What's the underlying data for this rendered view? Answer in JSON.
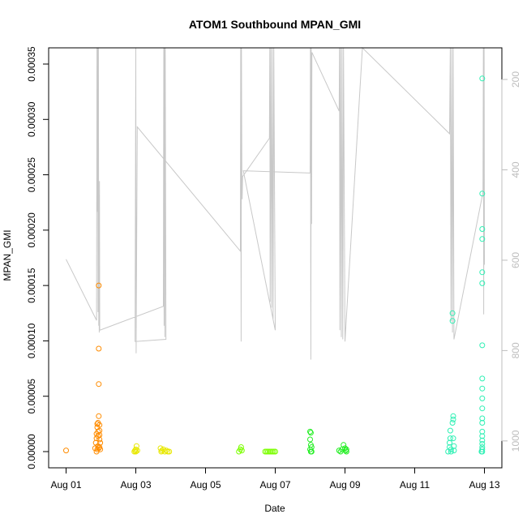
{
  "chart_data": {
    "type": "scatter",
    "title": "ATOM1 Southbound MPAN_GMI",
    "xlabel": "Date",
    "ylabel": "MPAN_GMI",
    "xlim": [
      "2004-07-31T12:00",
      "2004-08-13T12:00"
    ],
    "ylim": [
      0,
      0.00035
    ],
    "x_tick_labels": [
      "Aug 01",
      "Aug 03",
      "Aug 05",
      "Aug 07",
      "Aug 09",
      "Aug 11",
      "Aug 13"
    ],
    "x_ticks": [
      "2004-08-01",
      "2004-08-03",
      "2004-08-05",
      "2004-08-07",
      "2004-08-09",
      "2004-08-11",
      "2004-08-13"
    ],
    "y_ticks": [
      0,
      5e-05,
      0.0001,
      0.00015,
      0.0002,
      0.00025,
      0.0003,
      0.00035
    ],
    "y_tick_labels": [
      "0.00000",
      "0.00005",
      "0.00010",
      "0.00015",
      "0.00020",
      "0.00025",
      "0.00030",
      "0.00035"
    ],
    "right_axis": {
      "ticks": [
        200,
        400,
        600,
        800,
        1000
      ],
      "tick_labels": [
        "200",
        "400",
        "600",
        "800",
        "1000"
      ],
      "range": [
        130,
        1020
      ],
      "inverted": true,
      "color": "#bdbdbd"
    },
    "series": [
      {
        "color": "#ff8c00",
        "points": [
          [
            "2004-08-01T00:00",
            1e-06
          ],
          [
            "2004-08-01T20:00",
            3e-06
          ],
          [
            "2004-08-01T20:30",
            8e-06
          ],
          [
            "2004-08-01T21:00",
            1.2e-05
          ],
          [
            "2004-08-01T21:00",
            1.6e-05
          ],
          [
            "2004-08-01T21:30",
            2.2e-05
          ],
          [
            "2004-08-01T21:30",
            2.5e-05
          ],
          [
            "2004-08-01T22:00",
            2.6e-05
          ],
          [
            "2004-08-01T22:00",
            1.8e-05
          ],
          [
            "2004-08-01T22:00",
            1.4e-05
          ],
          [
            "2004-08-01T22:30",
            0.00015
          ],
          [
            "2004-08-01T22:30",
            9.3e-05
          ],
          [
            "2004-08-01T22:30",
            6.1e-05
          ],
          [
            "2004-08-01T22:30",
            3.2e-05
          ],
          [
            "2004-08-01T23:00",
            2.4e-05
          ],
          [
            "2004-08-01T23:00",
            1.9e-05
          ],
          [
            "2004-08-01T23:00",
            1.5e-05
          ],
          [
            "2004-08-01T23:00",
            1.1e-05
          ],
          [
            "2004-08-01T23:30",
            8e-06
          ],
          [
            "2004-08-01T22:00",
            5e-06
          ],
          [
            "2004-08-01T22:30",
            3e-06
          ],
          [
            "2004-08-01T21:30",
            2e-06
          ],
          [
            "2004-08-01T23:00",
            4e-06
          ],
          [
            "2004-08-01T23:30",
            2e-06
          ],
          [
            "2004-08-01T21:00",
            0.0
          ]
        ]
      },
      {
        "color": "#e8e800",
        "points": [
          [
            "2004-08-02T23:00",
            0.0
          ],
          [
            "2004-08-02T23:30",
            1e-06
          ],
          [
            "2004-08-03T00:00",
            2e-06
          ],
          [
            "2004-08-03T00:00",
            0.0
          ],
          [
            "2004-08-03T00:30",
            5e-06
          ],
          [
            "2004-08-03T01:00",
            1e-06
          ],
          [
            "2004-08-03T17:00",
            3e-06
          ],
          [
            "2004-08-03T17:30",
            0.0
          ],
          [
            "2004-08-03T18:00",
            1e-06
          ],
          [
            "2004-08-03T19:00",
            2e-06
          ],
          [
            "2004-08-03T20:00",
            0.0
          ],
          [
            "2004-08-03T21:00",
            1e-06
          ],
          [
            "2004-08-03T22:00",
            0.0
          ],
          [
            "2004-08-03T23:00",
            0.0
          ]
        ]
      },
      {
        "color": "#7cff00",
        "points": [
          [
            "2004-08-05T23:00",
            0.0
          ],
          [
            "2004-08-06T00:00",
            2e-06
          ],
          [
            "2004-08-06T00:30",
            4e-06
          ],
          [
            "2004-08-06T01:00",
            1e-06
          ],
          [
            "2004-08-06T17:00",
            0.0
          ],
          [
            "2004-08-06T18:00",
            0.0
          ],
          [
            "2004-08-06T19:00",
            0.0
          ],
          [
            "2004-08-06T20:00",
            0.0
          ],
          [
            "2004-08-06T21:00",
            0.0
          ],
          [
            "2004-08-06T22:00",
            0.0
          ],
          [
            "2004-08-06T23:00",
            0.0
          ],
          [
            "2004-08-07T00:00",
            0.0
          ]
        ]
      },
      {
        "color": "#22ee22",
        "points": [
          [
            "2004-08-08T00:00",
            1.8e-05
          ],
          [
            "2004-08-08T00:30",
            1.7e-05
          ],
          [
            "2004-08-08T00:00",
            1.1e-05
          ],
          [
            "2004-08-08T00:30",
            6e-06
          ],
          [
            "2004-08-08T01:00",
            4e-06
          ],
          [
            "2004-08-08T00:00",
            2e-06
          ],
          [
            "2004-08-08T01:00",
            0.0
          ],
          [
            "2004-08-08T00:30",
            0.0
          ],
          [
            "2004-08-08T20:00",
            1e-06
          ],
          [
            "2004-08-08T21:00",
            0.0
          ],
          [
            "2004-08-08T22:00",
            2e-06
          ],
          [
            "2004-08-08T23:00",
            6e-06
          ],
          [
            "2004-08-09T00:00",
            3e-06
          ],
          [
            "2004-08-09T00:30",
            1e-06
          ],
          [
            "2004-08-09T01:00",
            0.0
          ],
          [
            "2004-08-09T01:00",
            2e-06
          ]
        ]
      },
      {
        "color": "#2ef0b4",
        "points": [
          [
            "2004-08-11T23:00",
            0.0
          ],
          [
            "2004-08-12T00:00",
            4e-06
          ],
          [
            "2004-08-12T00:00",
            8e-06
          ],
          [
            "2004-08-12T00:30",
            1.2e-05
          ],
          [
            "2004-08-12T00:30",
            1.9e-05
          ],
          [
            "2004-08-12T01:00",
            2e-06
          ],
          [
            "2004-08-12T01:00",
            0.0
          ],
          [
            "2004-08-12T02:00",
            0.000125
          ],
          [
            "2004-08-12T02:00",
            0.000118
          ],
          [
            "2004-08-12T02:00",
            2.6e-05
          ],
          [
            "2004-08-12T02:30",
            3.2e-05
          ],
          [
            "2004-08-12T02:30",
            2.9e-05
          ],
          [
            "2004-08-12T02:30",
            1.2e-05
          ],
          [
            "2004-08-12T03:00",
            5e-06
          ],
          [
            "2004-08-12T03:00",
            1e-06
          ],
          [
            "2004-08-12T22:00",
            0.0
          ],
          [
            "2004-08-12T22:30",
            0.000337
          ],
          [
            "2004-08-12T22:30",
            0.000233
          ],
          [
            "2004-08-12T22:30",
            0.000201
          ],
          [
            "2004-08-12T22:30",
            0.000192
          ],
          [
            "2004-08-12T22:30",
            0.000162
          ],
          [
            "2004-08-12T22:30",
            0.000152
          ],
          [
            "2004-08-12T22:30",
            9.6e-05
          ],
          [
            "2004-08-12T22:30",
            6.6e-05
          ],
          [
            "2004-08-12T22:30",
            5.7e-05
          ],
          [
            "2004-08-12T22:30",
            4.8e-05
          ],
          [
            "2004-08-12T22:30",
            3.9e-05
          ],
          [
            "2004-08-12T22:30",
            3e-05
          ],
          [
            "2004-08-12T22:30",
            2.6e-05
          ],
          [
            "2004-08-12T22:30",
            1.8e-05
          ],
          [
            "2004-08-12T22:30",
            1.4e-05
          ],
          [
            "2004-08-12T22:30",
            1e-05
          ],
          [
            "2004-08-12T22:30",
            7e-06
          ],
          [
            "2004-08-12T22:30",
            4e-06
          ],
          [
            "2004-08-12T22:30",
            2e-06
          ],
          [
            "2004-08-12T22:30",
            0.0
          ]
        ]
      }
    ],
    "background_track": {
      "axis": "right",
      "color": "#c8c8c8",
      "points": [
        [
          "2004-08-01T00:00",
          598
        ],
        [
          "2004-08-01T21:00",
          733
        ],
        [
          "2004-08-01T21:15",
          130
        ],
        [
          "2004-08-01T21:30",
          493
        ],
        [
          "2004-08-01T21:45",
          130
        ],
        [
          "2004-08-01T22:00",
          715
        ],
        [
          "2004-08-01T22:15",
          130
        ],
        [
          "2004-08-01T22:30",
          745
        ],
        [
          "2004-08-01T22:40",
          455
        ],
        [
          "2004-08-01T22:50",
          760
        ],
        [
          "2004-08-01T23:00",
          425
        ],
        [
          "2004-08-01T23:10",
          755
        ],
        [
          "2004-08-03T19:00",
          702
        ],
        [
          "2004-08-03T19:15",
          130
        ],
        [
          "2004-08-03T19:30",
          745
        ],
        [
          "2004-08-03T19:45",
          130
        ],
        [
          "2004-08-03T20:00",
          770
        ],
        [
          "2004-08-03T20:15",
          130
        ],
        [
          "2004-08-03T20:30",
          430
        ],
        [
          "2004-08-03T20:45",
          775
        ],
        [
          "2004-08-02T23:30",
          780
        ],
        [
          "2004-08-03T00:00",
          130
        ],
        [
          "2004-08-03T00:15",
          806
        ],
        [
          "2004-08-03T01:00",
          305
        ],
        [
          "2004-08-06T00:00",
          580
        ],
        [
          "2004-08-06T00:15",
          130
        ],
        [
          "2004-08-06T00:30",
          780
        ],
        [
          "2004-08-06T00:45",
          130
        ],
        [
          "2004-08-06T01:00",
          400
        ],
        [
          "2004-08-06T01:15",
          465
        ],
        [
          "2004-08-06T01:30",
          415
        ],
        [
          "2004-08-06T20:00",
          330
        ],
        [
          "2004-08-06T20:15",
          130
        ],
        [
          "2004-08-06T20:30",
          692
        ],
        [
          "2004-08-06T21:00",
          130
        ],
        [
          "2004-08-06T21:30",
          705
        ],
        [
          "2004-08-06T22:00",
          130
        ],
        [
          "2004-08-06T22:30",
          730
        ],
        [
          "2004-08-06T23:00",
          130
        ],
        [
          "2004-08-07T00:00",
          755
        ],
        [
          "2004-08-06T02:00",
          402
        ],
        [
          "2004-08-08T00:00",
          407
        ],
        [
          "2004-08-08T00:15",
          130
        ],
        [
          "2004-08-08T00:30",
          820
        ],
        [
          "2004-08-08T00:45",
          130
        ],
        [
          "2004-08-08T01:00",
          520
        ],
        [
          "2004-08-08T01:15",
          140
        ],
        [
          "2004-08-08T20:00",
          270
        ],
        [
          "2004-08-08T20:15",
          130
        ],
        [
          "2004-08-08T20:30",
          755
        ],
        [
          "2004-08-08T21:00",
          130
        ],
        [
          "2004-08-08T21:30",
          770
        ],
        [
          "2004-08-08T22:00",
          130
        ],
        [
          "2004-08-08T22:30",
          775
        ],
        [
          "2004-08-08T23:00",
          130
        ],
        [
          "2004-08-09T00:00",
          780
        ],
        [
          "2004-08-09T12:00",
          130
        ],
        [
          "2004-08-12T00:00",
          320
        ],
        [
          "2004-08-12T00:30",
          130
        ],
        [
          "2004-08-12T01:00",
          735
        ],
        [
          "2004-08-12T01:30",
          130
        ],
        [
          "2004-08-12T02:00",
          760
        ],
        [
          "2004-08-12T02:30",
          130
        ],
        [
          "2004-08-12T03:00",
          775
        ],
        [
          "2004-08-12T23:00",
          450
        ],
        [
          "2004-08-12T23:15",
          130
        ],
        [
          "2004-08-12T23:30",
          720
        ],
        [
          "2004-08-12T23:45",
          130
        ],
        [
          "2004-08-13T00:00",
          610
        ]
      ]
    }
  }
}
